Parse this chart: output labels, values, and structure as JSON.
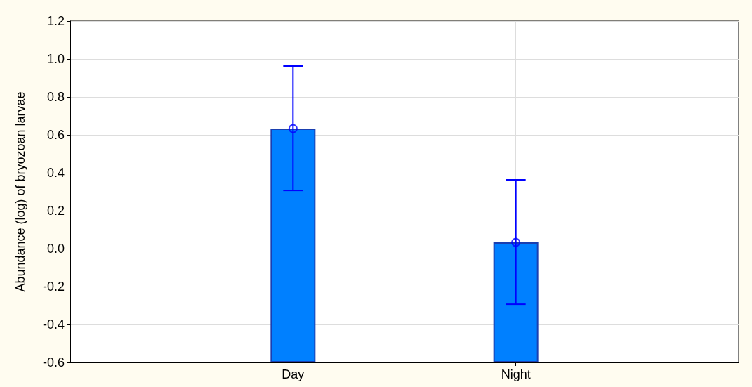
{
  "chart_data": {
    "type": "bar",
    "ylabel": "Abundance (log) of bryozoan larvae",
    "categories": [
      "Day",
      "Night"
    ],
    "series": [
      {
        "color": "#0080ff",
        "base": [
          -0.6,
          -0.6
        ],
        "values": [
          1.233,
          0.633
        ],
        "errors": [
          [
            0.307,
            0.963
          ],
          [
            -0.293,
            0.363
          ]
        ]
      },
      {
        "type": "scatter",
        "color": "#0000ff",
        "x": [
          "Day",
          "Night"
        ],
        "values": [
          0.633,
          0.033
        ]
      }
    ],
    "ylim": [
      -0.6,
      1.2
    ],
    "yticks": [
      -0.6,
      -0.4,
      -0.2,
      {
        "value": 0,
        "label": "0.0"
      },
      0.2,
      0.4,
      0.6,
      0.8,
      {
        "value": 1,
        "label": "1.0"
      },
      1.2
    ],
    "grid": true,
    "marker": "circle"
  }
}
